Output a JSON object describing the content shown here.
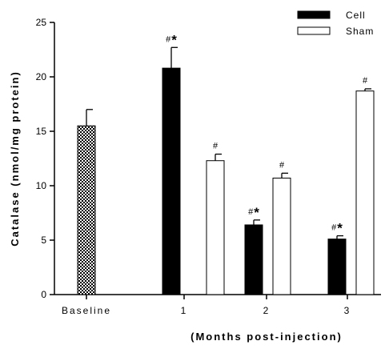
{
  "chart_data": {
    "type": "bar",
    "ylabel": "Catalase (nmol/mg protein)",
    "xlabel": "(Months post-injection)",
    "ylim": [
      0,
      25
    ],
    "yticks": [
      0,
      5,
      10,
      15,
      20,
      25
    ],
    "categories": [
      "Baseline",
      "1",
      "2",
      "3"
    ],
    "series": [
      {
        "name": "Baseline",
        "fill": "checkered",
        "values": [
          15.5,
          null,
          null,
          null
        ],
        "errors": [
          1.5,
          null,
          null,
          null
        ],
        "annotations": [
          "",
          "",
          "",
          ""
        ]
      },
      {
        "name": "Cell",
        "fill": "#000000",
        "values": [
          null,
          20.8,
          6.4,
          5.1
        ],
        "errors": [
          null,
          1.9,
          0.45,
          0.3
        ],
        "annotations": [
          "",
          "#*",
          "#*",
          "#*"
        ]
      },
      {
        "name": "Sham",
        "fill": "#ffffff",
        "values": [
          null,
          12.3,
          10.7,
          18.7
        ],
        "errors": [
          null,
          0.6,
          0.45,
          0.2
        ],
        "annotations": [
          "",
          "#",
          "#",
          "#"
        ]
      }
    ],
    "legend": {
      "position": "top-right",
      "items": [
        "Cell",
        "Sham"
      ]
    },
    "grid": false
  }
}
